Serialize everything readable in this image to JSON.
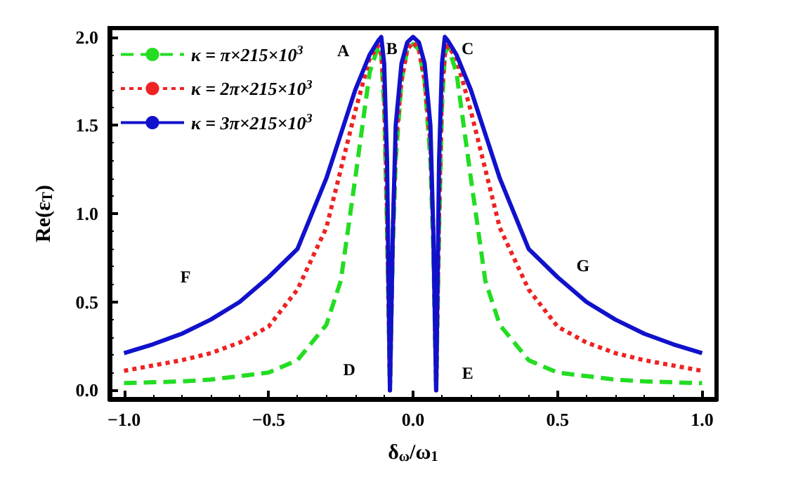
{
  "chart_data": {
    "type": "line",
    "xlabel": "δ$_{ω}$/ω$_{1}$",
    "ylabel": "Re(ε$_{T}$)",
    "x": [
      -1,
      -0.9,
      -0.8,
      -0.7,
      -0.6,
      -0.5,
      -0.4,
      -0.3,
      -0.25,
      -0.2,
      -0.15,
      -0.12,
      -0.11,
      -0.1,
      -0.09,
      -0.08,
      -0.07,
      -0.06,
      -0.04,
      -0.02,
      0,
      0.02,
      0.04,
      0.06,
      0.07,
      0.08,
      0.09,
      0.1,
      0.11,
      0.12,
      0.15,
      0.2,
      0.25,
      0.3,
      0.4,
      0.5,
      0.6,
      0.7,
      0.8,
      0.9,
      1
    ],
    "series": [
      {
        "name": "κ = π×215×10$^{3}$",
        "color": "#22dd22",
        "line_style": "dashed",
        "values": [
          0.04,
          0.045,
          0.05,
          0.06,
          0.08,
          0.1,
          0.17,
          0.37,
          0.62,
          1.2,
          1.8,
          1.95,
          1.9,
          1.6,
          0.9,
          0.0,
          0.8,
          1.3,
          1.75,
          1.93,
          1.96,
          1.93,
          1.75,
          1.3,
          0.8,
          0.0,
          0.9,
          1.6,
          1.9,
          1.95,
          1.8,
          1.2,
          0.62,
          0.37,
          0.17,
          0.1,
          0.08,
          0.06,
          0.05,
          0.045,
          0.04
        ]
      },
      {
        "name": "κ = 2π×215×10$^{3}$",
        "color": "#ee2222",
        "line_style": "dotted",
        "values": [
          0.11,
          0.14,
          0.17,
          0.21,
          0.27,
          0.36,
          0.57,
          0.92,
          1.25,
          1.58,
          1.88,
          1.95,
          1.9,
          1.7,
          1.0,
          0.0,
          0.9,
          1.4,
          1.75,
          1.93,
          1.97,
          1.93,
          1.75,
          1.4,
          0.9,
          0.0,
          1.0,
          1.7,
          1.9,
          1.95,
          1.88,
          1.58,
          1.25,
          0.92,
          0.57,
          0.36,
          0.27,
          0.21,
          0.17,
          0.14,
          0.11
        ]
      },
      {
        "name": "κ = 3π×215×10$^{3}$",
        "color": "#1111cc",
        "line_style": "solid",
        "values": [
          0.21,
          0.26,
          0.32,
          0.4,
          0.5,
          0.64,
          0.8,
          1.2,
          1.45,
          1.7,
          1.9,
          1.98,
          2.0,
          1.85,
          1.3,
          0.0,
          0.9,
          1.5,
          1.85,
          1.97,
          2.0,
          1.97,
          1.85,
          1.5,
          0.9,
          0.0,
          1.3,
          1.85,
          2.0,
          1.98,
          1.9,
          1.7,
          1.45,
          1.2,
          0.8,
          0.64,
          0.5,
          0.4,
          0.32,
          0.26,
          0.21
        ]
      }
    ],
    "xlim": [
      -1.05,
      1.05
    ],
    "ylim": [
      -0.05,
      2.05
    ],
    "xticks": [
      {
        "value": -1,
        "label": "−1.0"
      },
      {
        "value": -0.5,
        "label": "−0.5"
      },
      {
        "value": 0,
        "label": "0.0"
      },
      {
        "value": 0.5,
        "label": "0.5"
      },
      {
        "value": 1,
        "label": "1.0"
      }
    ],
    "yticks": [
      {
        "value": 0,
        "label": "0.0"
      },
      {
        "value": 0.5,
        "label": "0.5"
      },
      {
        "value": 1,
        "label": "1.0"
      },
      {
        "value": 1.5,
        "label": "1.5"
      },
      {
        "value": 2,
        "label": "2.0"
      }
    ],
    "grid": false,
    "legend": "top left",
    "marker": "none",
    "annotations": [
      "A",
      "B",
      "C",
      "D",
      "E",
      "F",
      "G"
    ]
  }
}
